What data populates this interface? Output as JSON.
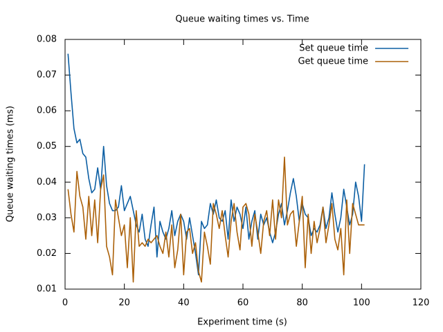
{
  "chart_data": {
    "type": "line",
    "title": "Queue waiting times vs. Time",
    "xlabel": "Experiment time (s)",
    "ylabel": "Queue waiting times (ms)",
    "x": [
      1,
      2,
      3,
      4,
      5,
      6,
      7,
      8,
      9,
      10,
      11,
      12,
      13,
      14,
      15,
      16,
      17,
      18,
      19,
      20,
      21,
      22,
      23,
      24,
      25,
      26,
      27,
      28,
      29,
      30,
      31,
      32,
      33,
      34,
      35,
      36,
      37,
      38,
      39,
      40,
      41,
      42,
      43,
      44,
      45,
      46,
      47,
      48,
      49,
      50,
      51,
      52,
      53,
      54,
      55,
      56,
      57,
      58,
      59,
      60,
      61,
      62,
      63,
      64,
      65,
      66,
      67,
      68,
      69,
      70,
      71,
      72,
      73,
      74,
      75,
      76,
      77,
      78,
      79,
      80,
      81,
      82,
      83,
      84,
      85,
      86,
      87,
      88,
      89,
      90,
      91,
      92,
      93,
      94,
      95,
      96,
      97,
      98,
      99,
      100,
      101
    ],
    "series": [
      {
        "name": "Set queue time",
        "color": "#0b5ea3",
        "values": [
          0.076,
          0.065,
          0.055,
          0.051,
          0.052,
          0.048,
          0.047,
          0.041,
          0.037,
          0.038,
          0.044,
          0.038,
          0.05,
          0.039,
          0.034,
          0.032,
          0.032,
          0.033,
          0.039,
          0.032,
          0.034,
          0.036,
          0.032,
          0.028,
          0.026,
          0.031,
          0.024,
          0.022,
          0.028,
          0.033,
          0.019,
          0.029,
          0.026,
          0.024,
          0.027,
          0.032,
          0.025,
          0.029,
          0.031,
          0.029,
          0.024,
          0.03,
          0.025,
          0.02,
          0.014,
          0.029,
          0.027,
          0.028,
          0.034,
          0.031,
          0.035,
          0.03,
          0.029,
          0.032,
          0.024,
          0.035,
          0.029,
          0.033,
          0.031,
          0.027,
          0.033,
          0.024,
          0.029,
          0.032,
          0.024,
          0.031,
          0.028,
          0.03,
          0.026,
          0.023,
          0.026,
          0.031,
          0.034,
          0.028,
          0.032,
          0.037,
          0.041,
          0.036,
          0.029,
          0.034,
          0.031,
          0.03,
          0.025,
          0.027,
          0.026,
          0.028,
          0.033,
          0.027,
          0.03,
          0.037,
          0.031,
          0.026,
          0.03,
          0.038,
          0.033,
          0.028,
          0.031,
          0.04,
          0.036,
          0.029,
          0.045
        ]
      },
      {
        "name": "Get queue time",
        "color": "#ab6008",
        "values": [
          0.038,
          0.031,
          0.026,
          0.043,
          0.036,
          0.033,
          0.024,
          0.036,
          0.025,
          0.035,
          0.023,
          0.038,
          0.042,
          0.022,
          0.019,
          0.014,
          0.035,
          0.03,
          0.025,
          0.028,
          0.016,
          0.03,
          0.012,
          0.032,
          0.022,
          0.023,
          0.022,
          0.024,
          0.023,
          0.024,
          0.025,
          0.022,
          0.02,
          0.026,
          0.019,
          0.028,
          0.016,
          0.021,
          0.031,
          0.014,
          0.026,
          0.027,
          0.02,
          0.023,
          0.015,
          0.012,
          0.026,
          0.022,
          0.017,
          0.034,
          0.031,
          0.027,
          0.032,
          0.025,
          0.019,
          0.029,
          0.034,
          0.026,
          0.021,
          0.033,
          0.034,
          0.031,
          0.022,
          0.031,
          0.026,
          0.02,
          0.029,
          0.032,
          0.025,
          0.035,
          0.024,
          0.035,
          0.03,
          0.047,
          0.028,
          0.031,
          0.032,
          0.022,
          0.029,
          0.036,
          0.016,
          0.031,
          0.02,
          0.029,
          0.023,
          0.027,
          0.033,
          0.023,
          0.028,
          0.034,
          0.024,
          0.021,
          0.027,
          0.014,
          0.035,
          0.02,
          0.034,
          0.031,
          0.028,
          0.028,
          0.028
        ]
      }
    ],
    "xlim": [
      0,
      120
    ],
    "xticks": [
      0,
      20,
      40,
      60,
      80,
      100,
      120
    ],
    "ylim": [
      0.01,
      0.08
    ],
    "yticks": [
      0.01,
      0.02,
      0.03,
      0.04,
      0.05,
      0.06,
      0.07,
      0.08
    ],
    "legend": "top-right"
  }
}
